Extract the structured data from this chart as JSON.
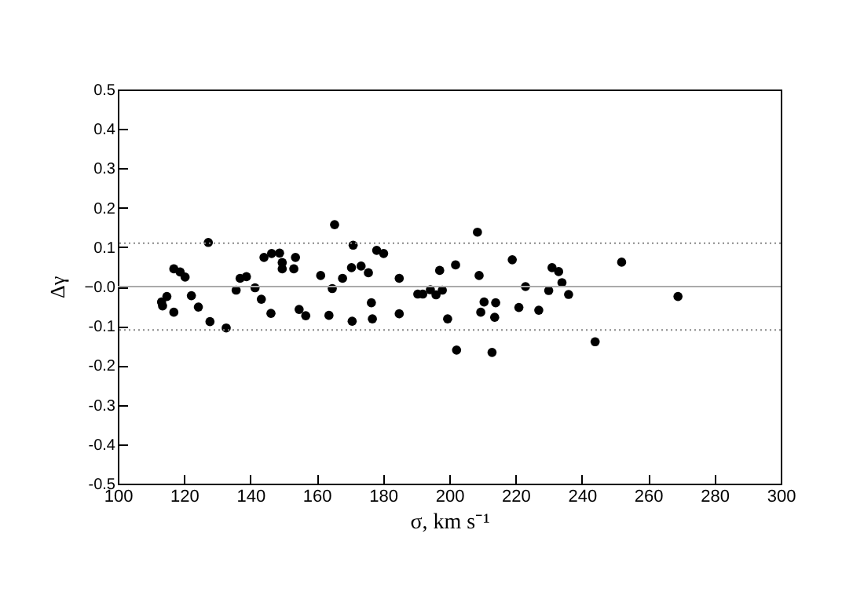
{
  "chart_data": {
    "type": "scatter",
    "xlabel": "σ, km s⁻¹",
    "ylabel": "Δγ",
    "x": [
      127.3,
      116.9,
      118.8,
      120.3,
      113.2,
      114.8,
      113.5,
      116.9,
      122.2,
      124.3,
      127.8,
      132.7,
      135.7,
      136.9,
      138.8,
      141.4,
      143.3,
      146.2,
      144.1,
      146.4,
      148.8,
      149.6,
      149.6,
      153.6,
      153.1,
      154.7,
      156.7,
      161.2,
      163.7,
      165.4,
      164.7,
      171.0,
      167.8,
      170.5,
      173.4,
      175.6,
      178.1,
      180.2,
      176.5,
      176.8,
      170.7,
      184.9,
      184.9,
      190.5,
      192.0,
      194.3,
      196.0,
      197.9,
      197.1,
      201.9,
      199.5,
      202.2,
      208.5,
      209.0,
      210.5,
      209.5,
      214.0,
      213.7,
      212.9,
      219,
      221,
      223,
      227,
      230,
      231,
      233,
      234,
      236,
      244,
      252,
      269
    ],
    "series": [
      {
        "color": "#000000",
        "values": [
          0.112,
          0.045,
          0.037,
          0.024,
          -0.039,
          -0.025,
          -0.049,
          -0.065,
          -0.023,
          -0.052,
          -0.089,
          -0.105,
          -0.009,
          0.021,
          0.025,
          -0.003,
          -0.032,
          -0.068,
          0.074,
          0.084,
          0.085,
          0.061,
          0.045,
          0.074,
          0.045,
          -0.058,
          -0.074,
          0.028,
          -0.073,
          0.157,
          -0.005,
          0.105,
          0.021,
          0.048,
          0.052,
          0.035,
          0.092,
          0.084,
          -0.041,
          -0.082,
          -0.088,
          0.021,
          -0.069,
          -0.019,
          -0.019,
          -0.008,
          -0.021,
          -0.009,
          0.041,
          0.055,
          -0.082,
          -0.161,
          0.138,
          0.028,
          -0.039,
          -0.065,
          -0.041,
          -0.078,
          -0.167,
          0.068,
          -0.053,
          0.0,
          -0.06,
          -0.01,
          0.048,
          0.038,
          0.01,
          -0.02,
          -0.14,
          0.062,
          -0.025
        ]
      }
    ],
    "xlim": [
      100,
      300
    ],
    "xticks": [
      100,
      120,
      140,
      160,
      180,
      200,
      220,
      240,
      260,
      280,
      300
    ],
    "ylim": [
      -0.5,
      0.5
    ],
    "yticks": [
      -0.5,
      -0.4,
      -0.3,
      -0.2,
      -0.1,
      {
        "value": 0,
        "label": "−0.0"
      },
      0.1,
      0.2,
      0.3,
      0.4,
      0.5
    ],
    "ref_lines": [
      {
        "axis": "y",
        "value": 0.11,
        "color": "#888888",
        "line_style": "dotted"
      },
      {
        "axis": "y",
        "value": 0,
        "color": "#aaaaaa",
        "line_style": "solid"
      },
      {
        "axis": "y",
        "value": -0.11,
        "color": "#888888",
        "line_style": "dotted"
      }
    ],
    "marker": "circle",
    "grid": false,
    "legend": false
  }
}
